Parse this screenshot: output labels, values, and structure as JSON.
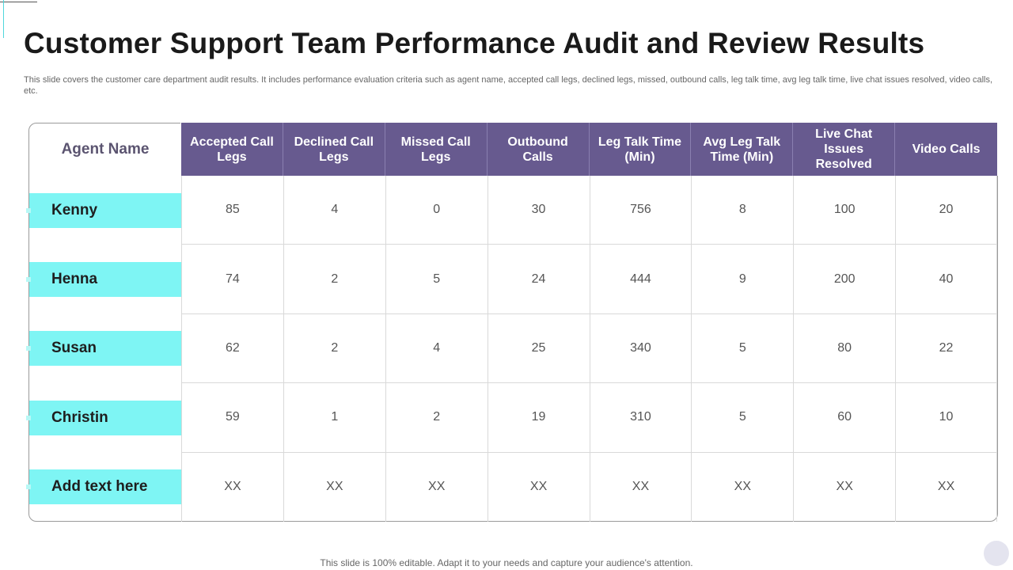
{
  "slide": {
    "title": "Customer Support Team Performance Audit and Review Results",
    "subtitle": "This slide covers the customer care department audit results. It includes performance evaluation criteria such as agent name, accepted call legs, declined legs, missed, outbound calls, leg talk time, avg leg talk time, live chat issues resolved, video calls, etc.",
    "footer": "This slide is 100% editable. Adapt it to your needs and capture your audience's attention."
  },
  "table": {
    "agent_header": "Agent Name",
    "columns": [
      "Accepted Call Legs",
      "Declined Call Legs",
      "Missed Call Legs",
      "Outbound Calls",
      "Leg Talk Time (Min)",
      "Avg Leg Talk Time (Min)",
      "Live Chat Issues Resolved",
      "Video Calls"
    ],
    "rows": [
      {
        "agent": "Kenny",
        "values": [
          "85",
          "4",
          "0",
          "30",
          "756",
          "8",
          "100",
          "20"
        ]
      },
      {
        "agent": "Henna",
        "values": [
          "74",
          "2",
          "5",
          "24",
          "444",
          "9",
          "200",
          "40"
        ]
      },
      {
        "agent": "Susan",
        "values": [
          "62",
          "2",
          "4",
          "25",
          "340",
          "5",
          "80",
          "22"
        ]
      },
      {
        "agent": "Christin",
        "values": [
          "59",
          "1",
          "2",
          "19",
          "310",
          "5",
          "60",
          "10"
        ]
      },
      {
        "agent": "Add text here",
        "values": [
          "XX",
          "XX",
          "XX",
          "XX",
          "XX",
          "XX",
          "XX",
          "XX"
        ]
      }
    ]
  },
  "colors": {
    "header_bg": "#675a8f",
    "agent_bar": "#7ef5f4",
    "accent_line": "#4fd6dc"
  }
}
